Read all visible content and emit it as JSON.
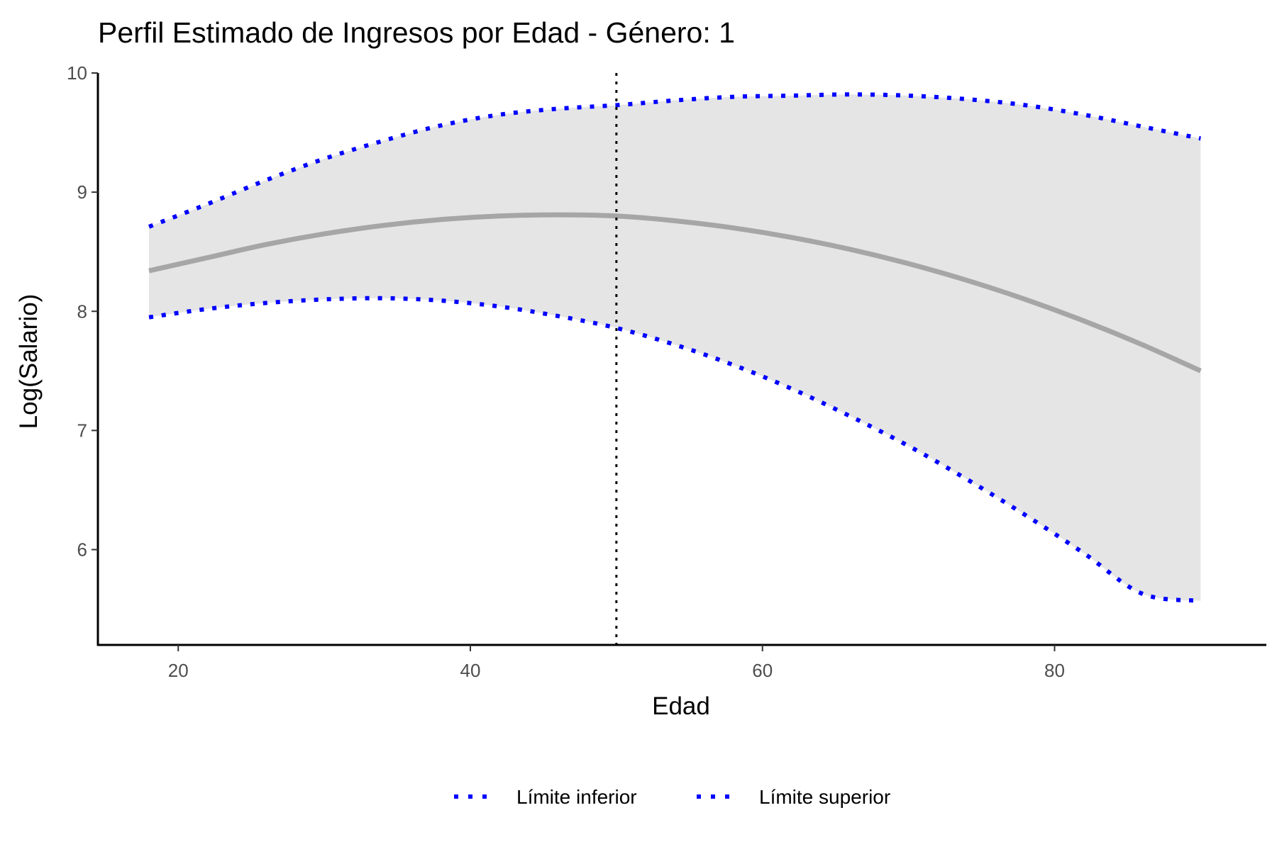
{
  "chart_data": {
    "type": "line",
    "title": "Perfil Estimado de Ingresos por Edad - Género: 1",
    "xlabel": "Edad",
    "ylabel": "Log(Salario)",
    "xlim": [
      14.5,
      94.5
    ],
    "ylim": [
      5.2,
      10.0
    ],
    "x_ticks": [
      20,
      40,
      60,
      80
    ],
    "x_tick_labels": [
      "20",
      "40",
      "60",
      "80"
    ],
    "y_ticks": [
      6,
      7,
      8,
      9,
      10
    ],
    "y_tick_labels": [
      "6",
      "7",
      "8",
      "9",
      "10"
    ],
    "grid": false,
    "legend_position": "bottom",
    "vline": {
      "x": 50,
      "style": "dotted",
      "color": "#000000"
    },
    "ribbon_color": "#e5e5e5",
    "estimate_color": "#a6a6a6",
    "bound_color": "#0000ff",
    "x": [
      18,
      22,
      26,
      30,
      34,
      38,
      42,
      46,
      50,
      54,
      58,
      62,
      66,
      70,
      74,
      78,
      82,
      86,
      90
    ],
    "estimate": [
      8.34,
      8.45,
      8.56,
      8.65,
      8.72,
      8.77,
      8.8,
      8.81,
      8.8,
      8.76,
      8.7,
      8.62,
      8.52,
      8.4,
      8.26,
      8.1,
      7.92,
      7.72,
      7.5
    ],
    "series": [
      {
        "name": "Límite inferior",
        "values": [
          7.95,
          8.02,
          8.07,
          8.1,
          8.11,
          8.09,
          8.04,
          7.96,
          7.86,
          7.72,
          7.55,
          7.35,
          7.12,
          6.87,
          6.59,
          6.29,
          5.97,
          5.63,
          5.57
        ]
      },
      {
        "name": "Límite superior",
        "values": [
          8.71,
          8.9,
          9.1,
          9.28,
          9.43,
          9.56,
          9.65,
          9.7,
          9.73,
          9.77,
          9.8,
          9.81,
          9.82,
          9.81,
          9.78,
          9.73,
          9.65,
          9.55,
          9.45
        ]
      }
    ]
  }
}
